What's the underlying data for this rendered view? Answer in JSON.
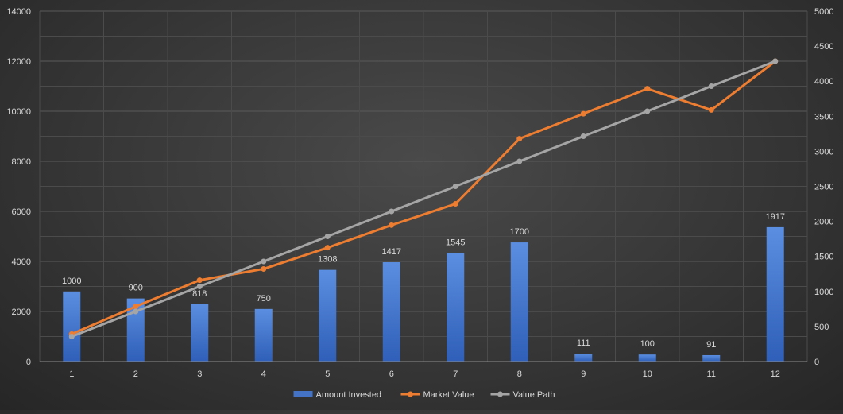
{
  "chart_data": {
    "type": "bar",
    "title": "",
    "xlabel": "",
    "ylabel": "",
    "categories": [
      "1",
      "2",
      "3",
      "4",
      "5",
      "6",
      "7",
      "8",
      "9",
      "10",
      "11",
      "12"
    ],
    "series": [
      {
        "name": "Amount Invested",
        "type": "bar",
        "axis": "right",
        "color": "#4472C4",
        "values": [
          1000,
          900,
          818,
          750,
          1308,
          1417,
          1545,
          1700,
          111,
          100,
          91,
          1917
        ],
        "data_labels": [
          "1000",
          "900",
          "818",
          "750",
          "1308",
          "1417",
          "1545",
          "1700",
          "111",
          "100",
          "91",
          "1917"
        ]
      },
      {
        "name": "Market Value",
        "type": "line",
        "axis": "left",
        "color": "#ED7D31",
        "values": [
          1100,
          2200,
          3250,
          3700,
          4550,
          5450,
          6300,
          8900,
          9900,
          10900,
          10050,
          12000
        ]
      },
      {
        "name": "Value Path",
        "type": "line",
        "axis": "left",
        "color": "#A5A5A5",
        "values": [
          1000,
          2000,
          3000,
          4000,
          5000,
          6000,
          7000,
          8000,
          9000,
          10000,
          11000,
          12000
        ]
      }
    ],
    "y_left": {
      "ylim": [
        0,
        14000
      ],
      "ticks": [
        "0",
        "2000",
        "4000",
        "6000",
        "8000",
        "10000",
        "12000",
        "14000"
      ]
    },
    "y_right": {
      "ylim": [
        0,
        5000
      ],
      "ticks": [
        "0",
        "500",
        "1000",
        "1500",
        "2000",
        "2500",
        "3000",
        "3500",
        "4000",
        "4500",
        "5000"
      ]
    },
    "grid": true,
    "legend": "bottom",
    "colors": {
      "tick_text": "#d9d9d9",
      "label_text": "#d9d9d9",
      "grid": "#5a5a5a",
      "axis": "#8c8c8c"
    }
  }
}
